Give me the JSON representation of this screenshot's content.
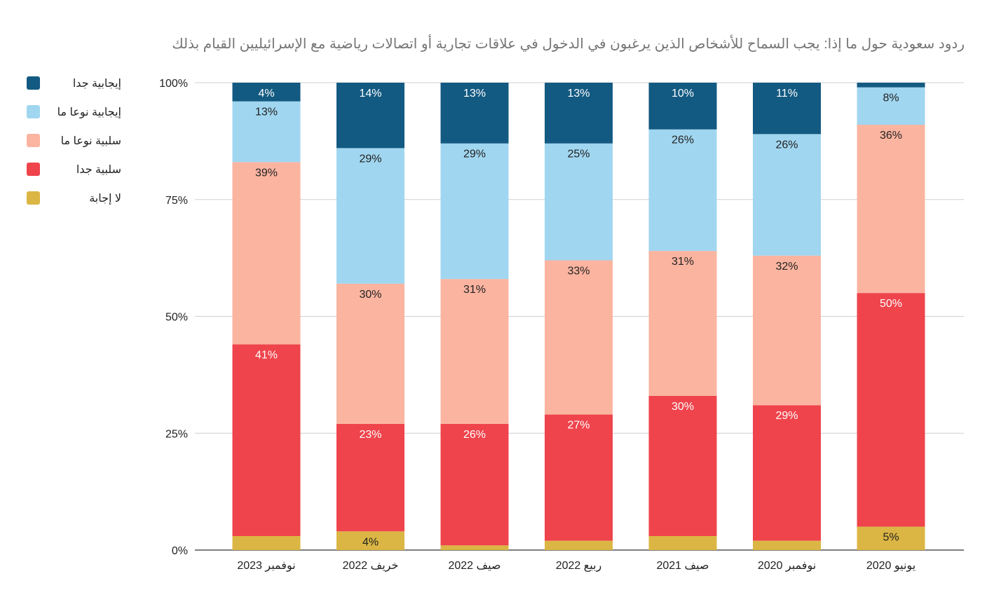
{
  "chart_data": {
    "type": "bar",
    "stacked": true,
    "title": "ردود سعودية حول ما إذا: يجب السماح للأشخاص الذين يرغبون في الدخول في علاقات تجارية أو اتصالات رياضية مع الإسرائيليين القيام بذلك",
    "categories": [
      "نوفمبر 2023",
      "خريف 2022",
      "صيف 2022",
      "ربيع 2022",
      "صيف 2021",
      "نوفمبر 2020",
      "يونيو 2020"
    ],
    "ylim": [
      0,
      100
    ],
    "yticks": [
      {
        "value": 0,
        "label": "0%"
      },
      {
        "value": 25,
        "label": "25%"
      },
      {
        "value": 50,
        "label": "50%"
      },
      {
        "value": 75,
        "label": "75%"
      },
      {
        "value": 100,
        "label": "100%"
      }
    ],
    "grid": true,
    "legend_position": "left",
    "series": [
      {
        "name": "لا إجابة",
        "color": "#dcb644",
        "label_color": "#222222",
        "values": [
          3,
          4,
          1,
          2,
          3,
          2,
          5
        ],
        "labels": [
          "",
          "4%",
          "",
          "",
          "",
          "",
          "5%"
        ]
      },
      {
        "name": "سلبية جدا",
        "color": "#ef444c",
        "label_color": "#ffffff",
        "values": [
          41,
          23,
          26,
          27,
          30,
          29,
          50
        ],
        "labels": [
          "41%",
          "23%",
          "26%",
          "27%",
          "30%",
          "29%",
          "50%"
        ]
      },
      {
        "name": "سلبية نوعا ما",
        "color": "#fbb4a0",
        "label_color": "#222222",
        "values": [
          39,
          30,
          31,
          33,
          31,
          32,
          36
        ],
        "labels": [
          "39%",
          "30%",
          "31%",
          "33%",
          "31%",
          "32%",
          "36%"
        ]
      },
      {
        "name": "إيجابية نوعا ما",
        "color": "#a0d6f0",
        "label_color": "#222222",
        "values": [
          13,
          29,
          29,
          25,
          26,
          26,
          8
        ],
        "labels": [
          "13%",
          "29%",
          "29%",
          "25%",
          "26%",
          "26%",
          "8%"
        ]
      },
      {
        "name": "إيجابية جدا",
        "color": "#135a82",
        "label_color": "#ffffff",
        "values": [
          4,
          14,
          13,
          13,
          10,
          11,
          1
        ],
        "labels": [
          "4%",
          "14%",
          "13%",
          "13%",
          "10%",
          "11%",
          ""
        ]
      }
    ]
  }
}
